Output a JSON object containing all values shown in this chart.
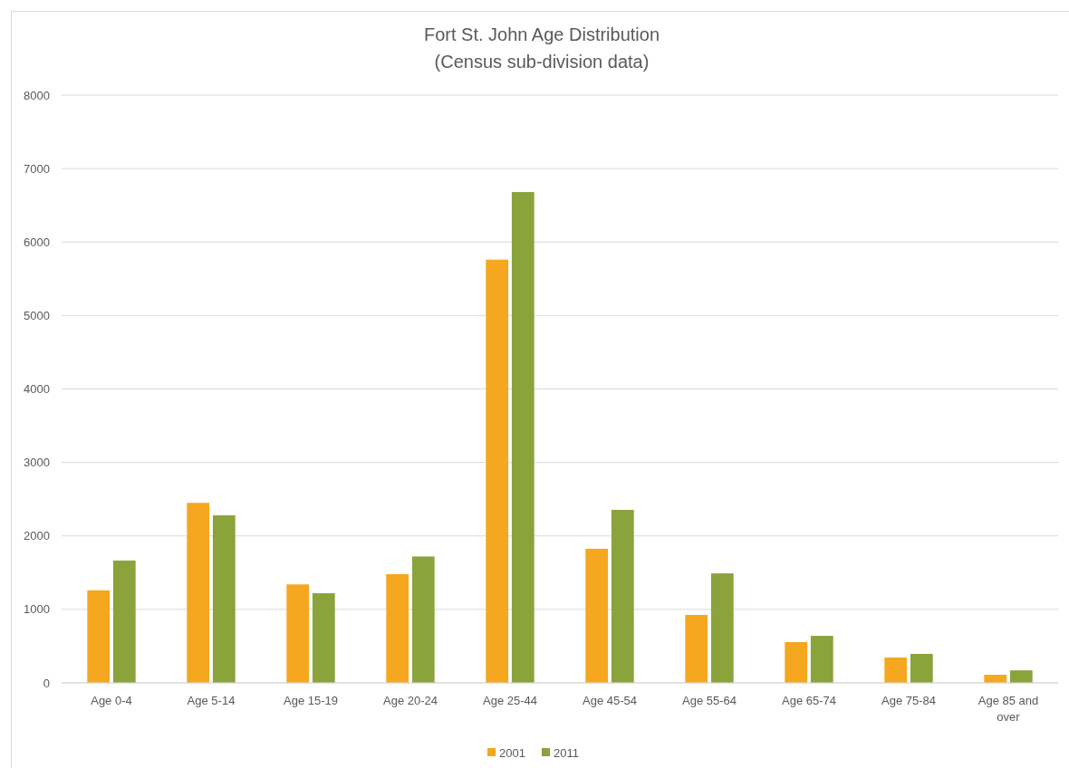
{
  "chart_data": {
    "type": "bar",
    "title": "Fort St. John Age Distribution",
    "subtitle": "(Census sub-division data)",
    "categories": [
      "Age 0-4",
      "Age 5-14",
      "Age 15-19",
      "Age 20-24",
      "Age 25-44",
      "Age 45-54",
      "Age 55-64",
      "Age 65-74",
      "Age 75-84",
      "Age 85 and over"
    ],
    "series": [
      {
        "name": "2001",
        "color": "#f5a71f",
        "values": [
          1260,
          2450,
          1340,
          1480,
          5760,
          1825,
          925,
          555,
          345,
          110
        ]
      },
      {
        "name": "2011",
        "color": "#8aa33b",
        "values": [
          1665,
          2280,
          1220,
          1720,
          6680,
          2355,
          1490,
          640,
          395,
          170
        ]
      }
    ],
    "ylim": [
      0,
      8000
    ],
    "yticks": [
      0,
      1000,
      2000,
      3000,
      4000,
      5000,
      6000,
      7000,
      8000
    ],
    "grid": "y",
    "legend": "bottom"
  }
}
